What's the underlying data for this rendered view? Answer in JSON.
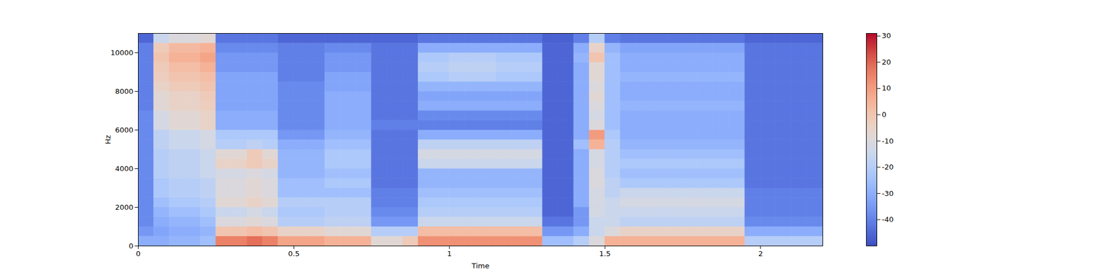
{
  "chart_data": {
    "type": "heatmap",
    "x_label": "Time",
    "y_label": "Hz",
    "xlim": [
      0,
      2.2
    ],
    "ylim": [
      0,
      11000
    ],
    "xticks": [
      0,
      0.5,
      1,
      1.5,
      2
    ],
    "yticks": [
      0,
      2000,
      4000,
      6000,
      8000,
      10000
    ],
    "x_bins": [
      0,
      0.05,
      0.1,
      0.15,
      0.2,
      0.25,
      0.3,
      0.35,
      0.4,
      0.45,
      0.5,
      0.55,
      0.6,
      0.65,
      0.7,
      0.75,
      0.8,
      0.85,
      0.9,
      0.95,
      1,
      1.05,
      1.1,
      1.15,
      1.2,
      1.25,
      1.3,
      1.35,
      1.4,
      1.45,
      1.5,
      1.55,
      1.6,
      1.65,
      1.7,
      1.75,
      1.8,
      1.85,
      1.9,
      1.95,
      2,
      2.05,
      2.1,
      2.15,
      2.2
    ],
    "y_bins": [
      0,
      500,
      1000,
      1500,
      2000,
      2500,
      3000,
      3500,
      4000,
      4500,
      5000,
      5500,
      6000,
      6500,
      7000,
      7500,
      8000,
      8500,
      9000,
      9500,
      10000,
      10500,
      11000
    ],
    "z": [
      [
        -30,
        -35,
        -38,
        -38,
        -38,
        -38,
        -38,
        -38,
        -38,
        -38,
        -38,
        -38,
        -38,
        -38,
        -40,
        -40,
        -40,
        -40,
        -40,
        -40,
        -40,
        -45
      ],
      [
        -30,
        -32,
        -30,
        -28,
        -25,
        -22,
        -22,
        -20,
        -20,
        -20,
        -18,
        -18,
        -12,
        -12,
        -8,
        -8,
        -5,
        -3,
        -2,
        0,
        -2,
        -15
      ],
      [
        -28,
        -30,
        -28,
        -25,
        -22,
        -20,
        -20,
        -18,
        -18,
        -18,
        -15,
        -15,
        -8,
        -8,
        -5,
        -5,
        -2,
        0,
        2,
        5,
        3,
        -10
      ],
      [
        -28,
        -30,
        -28,
        -25,
        -22,
        -20,
        -20,
        -18,
        -18,
        -18,
        -15,
        -15,
        -8,
        -8,
        -5,
        -5,
        -2,
        0,
        2,
        5,
        3,
        -10
      ],
      [
        -25,
        -28,
        -25,
        -22,
        -20,
        -18,
        -18,
        -15,
        -15,
        -15,
        -12,
        -12,
        -5,
        -5,
        -3,
        -2,
        0,
        2,
        5,
        8,
        5,
        -8
      ],
      [
        15,
        0,
        -10,
        -15,
        -8,
        -10,
        -10,
        -12,
        -5,
        -8,
        -20,
        -22,
        -30,
        -30,
        -32,
        -32,
        -32,
        -32,
        -35,
        -35,
        -38,
        -42
      ],
      [
        15,
        0,
        -10,
        -15,
        -8,
        -10,
        -10,
        -12,
        -5,
        -8,
        -20,
        -22,
        -30,
        -30,
        -32,
        -32,
        -32,
        -32,
        -35,
        -35,
        -38,
        -42
      ],
      [
        18,
        2,
        -8,
        -12,
        -5,
        -8,
        -8,
        -10,
        -2,
        -2,
        -18,
        -22,
        -30,
        -30,
        -32,
        -32,
        -32,
        -32,
        -35,
        -35,
        -38,
        -42
      ],
      [
        15,
        0,
        -10,
        -15,
        -8,
        -10,
        -10,
        -12,
        -5,
        -8,
        -20,
        -22,
        -30,
        -30,
        -32,
        -32,
        -32,
        -32,
        -35,
        -35,
        -38,
        -42
      ],
      [
        8,
        -5,
        -20,
        -22,
        -20,
        -25,
        -25,
        -28,
        -28,
        -28,
        -30,
        -35,
        -38,
        -38,
        -38,
        -38,
        -38,
        -40,
        -40,
        -40,
        -40,
        -45
      ],
      [
        8,
        -5,
        -20,
        -22,
        -20,
        -25,
        -25,
        -28,
        -28,
        -28,
        -30,
        -35,
        -38,
        -38,
        -38,
        -38,
        -38,
        -40,
        -40,
        -40,
        -40,
        -45
      ],
      [
        8,
        -5,
        -20,
        -22,
        -20,
        -25,
        -25,
        -28,
        -28,
        -28,
        -30,
        -35,
        -38,
        -38,
        -38,
        -38,
        -38,
        -40,
        -40,
        -40,
        -40,
        -45
      ],
      [
        5,
        -8,
        -18,
        -20,
        -20,
        -25,
        -22,
        -25,
        -22,
        -22,
        -25,
        -28,
        -30,
        -30,
        -30,
        -30,
        -32,
        -32,
        -35,
        -35,
        -38,
        -45
      ],
      [
        5,
        -8,
        -18,
        -20,
        -20,
        -25,
        -22,
        -25,
        -22,
        -22,
        -25,
        -28,
        -30,
        -30,
        -30,
        -30,
        -32,
        -32,
        -35,
        -35,
        -38,
        -45
      ],
      [
        5,
        -8,
        -18,
        -20,
        -20,
        -25,
        -22,
        -25,
        -22,
        -22,
        -25,
        -28,
        -30,
        -30,
        -30,
        -30,
        -32,
        -32,
        -35,
        -35,
        -38,
        -45
      ],
      [
        -8,
        -20,
        -35,
        -38,
        -40,
        -40,
        -42,
        -42,
        -42,
        -42,
        -42,
        -42,
        -40,
        -42,
        -42,
        -42,
        -42,
        -42,
        -42,
        -42,
        -42,
        -45
      ],
      [
        -8,
        -20,
        -35,
        -38,
        -40,
        -40,
        -42,
        -42,
        -42,
        -42,
        -42,
        -42,
        -40,
        -42,
        -42,
        -42,
        -42,
        -42,
        -42,
        -42,
        -42,
        -45
      ],
      [
        -2,
        -20,
        -35,
        -38,
        -40,
        -40,
        -42,
        -42,
        -42,
        -42,
        -42,
        -42,
        -40,
        -42,
        -42,
        -42,
        -42,
        -42,
        -42,
        -42,
        -42,
        -45
      ],
      [
        12,
        2,
        -15,
        -20,
        -22,
        -25,
        -28,
        -28,
        -15,
        -12,
        -18,
        -30,
        -40,
        -38,
        -30,
        -32,
        -28,
        -22,
        -20,
        -22,
        -30,
        -42
      ],
      [
        12,
        2,
        -15,
        -20,
        -22,
        -25,
        -28,
        -28,
        -15,
        -12,
        -18,
        -30,
        -40,
        -38,
        -30,
        -32,
        -28,
        -22,
        -20,
        -22,
        -30,
        -42
      ],
      [
        12,
        2,
        -15,
        -20,
        -22,
        -25,
        -28,
        -28,
        -15,
        -12,
        -18,
        -30,
        -40,
        -38,
        -30,
        -32,
        -28,
        -20,
        -18,
        -20,
        -30,
        -42
      ],
      [
        12,
        2,
        -15,
        -20,
        -22,
        -25,
        -28,
        -28,
        -15,
        -12,
        -18,
        -30,
        -40,
        -38,
        -30,
        -32,
        -28,
        -20,
        -18,
        -20,
        -30,
        -42
      ],
      [
        12,
        2,
        -15,
        -20,
        -22,
        -25,
        -28,
        -28,
        -15,
        -12,
        -18,
        -30,
        -40,
        -38,
        -30,
        -32,
        -28,
        -20,
        -18,
        -20,
        -30,
        -42
      ],
      [
        12,
        2,
        -15,
        -20,
        -22,
        -25,
        -28,
        -28,
        -15,
        -12,
        -18,
        -30,
        -40,
        -38,
        -30,
        -32,
        -28,
        -22,
        -20,
        -22,
        -30,
        -42
      ],
      [
        12,
        2,
        -15,
        -20,
        -22,
        -25,
        -28,
        -28,
        -15,
        -12,
        -18,
        -30,
        -40,
        -38,
        -30,
        -32,
        -28,
        -22,
        -20,
        -22,
        -30,
        -42
      ],
      [
        12,
        2,
        -15,
        -20,
        -22,
        -25,
        -28,
        -28,
        -15,
        -12,
        -18,
        -30,
        -40,
        -38,
        -30,
        -32,
        -28,
        -22,
        -20,
        -22,
        -30,
        -42
      ],
      [
        -25,
        -35,
        -42,
        -45,
        -45,
        -45,
        -45,
        -45,
        -45,
        -45,
        -45,
        -45,
        -45,
        -45,
        -45,
        -45,
        -45,
        -45,
        -45,
        -45,
        -45,
        -46
      ],
      [
        -25,
        -35,
        -42,
        -45,
        -45,
        -45,
        -45,
        -45,
        -45,
        -45,
        -45,
        -45,
        -45,
        -45,
        -45,
        -45,
        -45,
        -45,
        -45,
        -45,
        -45,
        -46
      ],
      [
        -20,
        -30,
        -35,
        -35,
        -30,
        -30,
        -30,
        -30,
        -30,
        -30,
        -25,
        -30,
        -30,
        -30,
        -30,
        -30,
        -30,
        -30,
        -30,
        -28,
        -30,
        -40
      ],
      [
        -10,
        -15,
        -15,
        -12,
        -12,
        -12,
        -10,
        -10,
        -12,
        -12,
        5,
        10,
        -10,
        -12,
        -10,
        -8,
        -10,
        -8,
        -8,
        0,
        -5,
        -20
      ],
      [
        5,
        -10,
        -15,
        -15,
        -15,
        -18,
        -18,
        -20,
        -20,
        -20,
        -20,
        -22,
        -25,
        -25,
        -25,
        -25,
        -25,
        -25,
        -25,
        -25,
        -28,
        -40
      ],
      [
        5,
        -5,
        -18,
        -15,
        -12,
        -15,
        -22,
        -25,
        -22,
        -25,
        -28,
        -30,
        -30,
        -30,
        -28,
        -30,
        -30,
        -28,
        -30,
        -30,
        -32,
        -42
      ],
      [
        5,
        -5,
        -18,
        -15,
        -12,
        -15,
        -22,
        -25,
        -22,
        -25,
        -28,
        -30,
        -30,
        -30,
        -28,
        -30,
        -30,
        -28,
        -30,
        -30,
        -32,
        -42
      ],
      [
        5,
        -5,
        -18,
        -15,
        -12,
        -15,
        -22,
        -25,
        -22,
        -25,
        -28,
        -30,
        -30,
        -30,
        -28,
        -30,
        -30,
        -28,
        -30,
        -30,
        -32,
        -42
      ],
      [
        5,
        -5,
        -18,
        -15,
        -12,
        -15,
        -22,
        -25,
        -22,
        -25,
        -28,
        -30,
        -30,
        -30,
        -28,
        -30,
        -30,
        -28,
        -30,
        -30,
        -32,
        -42
      ],
      [
        5,
        -5,
        -18,
        -15,
        -12,
        -15,
        -22,
        -25,
        -22,
        -25,
        -28,
        -30,
        -30,
        -30,
        -28,
        -30,
        -30,
        -28,
        -30,
        -30,
        -32,
        -42
      ],
      [
        5,
        -5,
        -18,
        -15,
        -12,
        -15,
        -22,
        -25,
        -22,
        -25,
        -28,
        -30,
        -30,
        -30,
        -28,
        -30,
        -30,
        -28,
        -30,
        -30,
        -32,
        -42
      ],
      [
        5,
        -5,
        -18,
        -15,
        -12,
        -15,
        -22,
        -25,
        -22,
        -25,
        -28,
        -30,
        -30,
        -30,
        -28,
        -30,
        -30,
        -28,
        -30,
        -30,
        -32,
        -42
      ],
      [
        5,
        -5,
        -18,
        -15,
        -12,
        -15,
        -22,
        -25,
        -22,
        -25,
        -28,
        -30,
        -30,
        -30,
        -28,
        -30,
        -30,
        -28,
        -30,
        -30,
        -32,
        -42
      ],
      [
        -20,
        -30,
        -38,
        -40,
        -40,
        -40,
        -42,
        -42,
        -42,
        -42,
        -42,
        -42,
        -42,
        -42,
        -42,
        -42,
        -42,
        -42,
        -42,
        -42,
        -42,
        -45
      ],
      [
        -20,
        -30,
        -38,
        -40,
        -40,
        -40,
        -42,
        -42,
        -42,
        -42,
        -42,
        -42,
        -42,
        -42,
        -42,
        -42,
        -42,
        -42,
        -42,
        -42,
        -42,
        -45
      ],
      [
        -20,
        -30,
        -38,
        -40,
        -40,
        -40,
        -42,
        -42,
        -42,
        -42,
        -42,
        -42,
        -42,
        -42,
        -42,
        -42,
        -42,
        -42,
        -42,
        -42,
        -42,
        -45
      ],
      [
        -20,
        -30,
        -38,
        -40,
        -40,
        -40,
        -42,
        -42,
        -42,
        -42,
        -42,
        -42,
        -42,
        -42,
        -42,
        -42,
        -42,
        -42,
        -42,
        -42,
        -42,
        -45
      ],
      [
        -20,
        -30,
        -38,
        -40,
        -40,
        -40,
        -42,
        -42,
        -42,
        -42,
        -42,
        -42,
        -42,
        -42,
        -42,
        -42,
        -42,
        -42,
        -42,
        -42,
        -42,
        -45
      ]
    ],
    "zlim": [
      -50,
      31
    ],
    "zticks": [
      -40,
      -30,
      -20,
      -10,
      0,
      10,
      20,
      30
    ]
  }
}
